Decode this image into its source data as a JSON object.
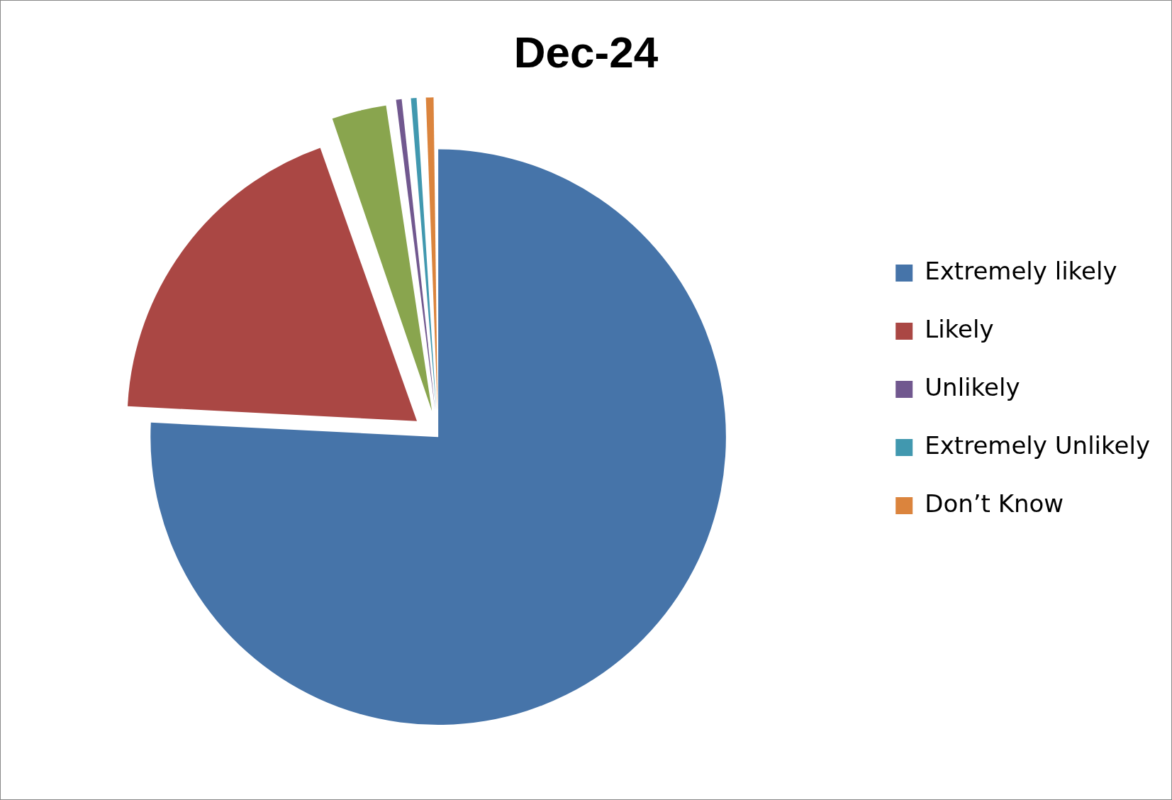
{
  "chart_data": {
    "type": "pie",
    "title": "Dec-24",
    "categories": [
      "Extremely likely",
      "Likely",
      null,
      "Unlikely",
      "Extremely Unlikely",
      "Don’t Know"
    ],
    "values": [
      75.8,
      18.8,
      3.2,
      0.7,
      0.7,
      0.8
    ],
    "colors": [
      "#4674a9",
      "#aa4744",
      "#89a54e",
      "#71588f",
      "#4198af",
      "#db843d"
    ],
    "legend": "right"
  }
}
